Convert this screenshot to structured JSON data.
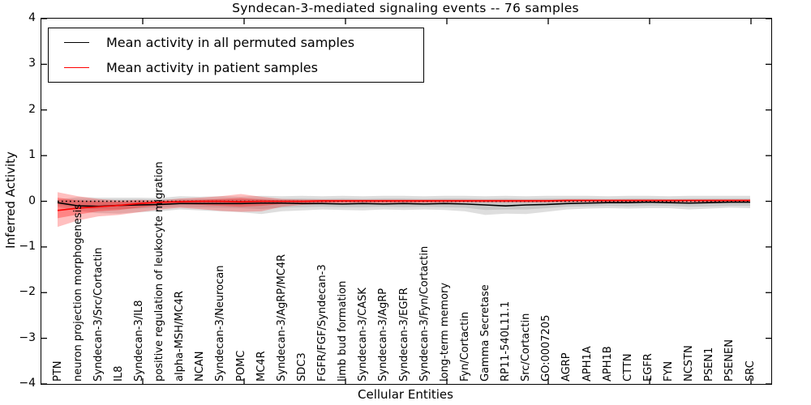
{
  "chart_data": {
    "type": "line",
    "title": "Syndecan-3-mediated signaling events -- 76 samples",
    "xlabel": "Cellular Entities",
    "ylabel": "Inferred Activity",
    "ylim": [
      -4,
      4
    ],
    "yticks": [
      "4",
      "3",
      "2",
      "1",
      "0",
      "−1",
      "−2",
      "−3",
      "−4"
    ],
    "grid": false,
    "legend_position": "upper left",
    "zero_line": {
      "y": 0,
      "style": "dotted",
      "color": "#000000"
    },
    "categories": [
      "PTN",
      "neuron projection morphogenesis",
      "Syndecan-3/Src/Cortactin",
      "IL8",
      "Syndecan-3/IL8",
      "positive regulation of leukocyte migration",
      "alpha-MSH/MC4R",
      "NCAN",
      "Syndecan-3/Neurocan",
      "POMC",
      "MC4R",
      "Syndecan-3/AgRP/MC4R",
      "SDC3",
      "FGFR/FGF/Syndecan-3",
      "limb bud formation",
      "Syndecan-3/CASK",
      "Syndecan-3/AgRP",
      "Syndecan-3/EGFR",
      "Syndecan-3/Fyn/Cortactin",
      "long-term memory",
      "Fyn/Cortactin",
      "Gamma Secretase",
      "RP11-540L11.1",
      "Src/Cortactin",
      "GO:0007205",
      "AGRP",
      "APH1A",
      "APH1B",
      "CTTN",
      "EGFR",
      "FYN",
      "NCSTN",
      "PSEN1",
      "PSENEN",
      "SRC"
    ],
    "series": [
      {
        "name": "Mean activity in all permuted samples",
        "color": "#000000",
        "values": [
          -0.03,
          -0.1,
          -0.11,
          -0.09,
          -0.08,
          -0.07,
          -0.05,
          -0.05,
          -0.05,
          -0.05,
          -0.04,
          -0.04,
          -0.05,
          -0.05,
          -0.06,
          -0.05,
          -0.06,
          -0.05,
          -0.06,
          -0.05,
          -0.06,
          -0.08,
          -0.1,
          -0.08,
          -0.07,
          -0.05,
          -0.04,
          -0.03,
          -0.03,
          -0.02,
          -0.03,
          -0.04,
          -0.03,
          -0.02,
          -0.02
        ]
      },
      {
        "name": "Mean activity in patient samples",
        "color": "#ff0000",
        "values": [
          -0.2,
          -0.15,
          -0.12,
          -0.09,
          -0.05,
          -0.02,
          -0.01,
          0.0,
          0.0,
          -0.01,
          0.0,
          0.0,
          0.0,
          0.01,
          0.01,
          0.01,
          0.01,
          0.01,
          0.01,
          0.01,
          0.01,
          0.01,
          0.01,
          0.01,
          0.01,
          0.02,
          0.02,
          0.02,
          0.02,
          0.02,
          0.02,
          0.02,
          0.02,
          0.02,
          0.02
        ]
      }
    ],
    "bands": [
      {
        "name": "permuted-band-outer",
        "color": "rgba(0,0,0,0.13)",
        "upper": [
          0.04,
          0.09,
          0.08,
          0.08,
          0.08,
          0.07,
          0.11,
          0.1,
          0.11,
          0.1,
          0.12,
          0.11,
          0.12,
          0.11,
          0.12,
          0.11,
          0.12,
          0.12,
          0.11,
          0.12,
          0.12,
          0.11,
          0.12,
          0.11,
          0.12,
          0.12,
          0.12,
          0.11,
          0.12,
          0.12,
          0.11,
          0.12,
          0.12,
          0.12,
          0.12
        ],
        "lower": [
          -0.12,
          -0.21,
          -0.26,
          -0.27,
          -0.24,
          -0.22,
          -0.18,
          -0.2,
          -0.22,
          -0.24,
          -0.28,
          -0.22,
          -0.2,
          -0.18,
          -0.19,
          -0.2,
          -0.18,
          -0.19,
          -0.18,
          -0.19,
          -0.22,
          -0.3,
          -0.27,
          -0.28,
          -0.23,
          -0.18,
          -0.16,
          -0.15,
          -0.16,
          -0.15,
          -0.15,
          -0.18,
          -0.16,
          -0.14,
          -0.15
        ]
      },
      {
        "name": "permuted-band-inner",
        "color": "rgba(0,0,0,0.10)",
        "upper": [
          0.02,
          0.04,
          0.04,
          0.04,
          0.04,
          0.04,
          0.05,
          0.05,
          0.05,
          0.05,
          0.06,
          0.05,
          0.06,
          0.05,
          0.06,
          0.05,
          0.06,
          0.06,
          0.05,
          0.06,
          0.06,
          0.05,
          0.06,
          0.05,
          0.06,
          0.06,
          0.06,
          0.05,
          0.06,
          0.06,
          0.05,
          0.06,
          0.06,
          0.06,
          0.06
        ],
        "lower": [
          -0.08,
          -0.14,
          -0.17,
          -0.17,
          -0.16,
          -0.14,
          -0.12,
          -0.13,
          -0.14,
          -0.15,
          -0.17,
          -0.14,
          -0.13,
          -0.12,
          -0.13,
          -0.13,
          -0.12,
          -0.13,
          -0.12,
          -0.13,
          -0.14,
          -0.19,
          -0.18,
          -0.18,
          -0.15,
          -0.12,
          -0.11,
          -0.1,
          -0.11,
          -0.1,
          -0.1,
          -0.12,
          -0.11,
          -0.1,
          -0.1
        ]
      },
      {
        "name": "patient-band-outer",
        "color": "rgba(255,0,0,0.25)",
        "upper": [
          0.2,
          0.11,
          0.05,
          0.02,
          0.03,
          0.02,
          0.06,
          0.08,
          0.11,
          0.16,
          0.1,
          0.05,
          0.04,
          0.04,
          0.04,
          0.04,
          0.04,
          0.04,
          0.04,
          0.04,
          0.04,
          0.04,
          0.04,
          0.04,
          0.04,
          0.04,
          0.04,
          0.04,
          0.04,
          0.04,
          0.04,
          0.04,
          0.04,
          0.04,
          0.04
        ],
        "lower": [
          -0.56,
          -0.42,
          -0.33,
          -0.3,
          -0.24,
          -0.18,
          -0.14,
          -0.17,
          -0.21,
          -0.23,
          -0.22,
          -0.12,
          -0.08,
          -0.06,
          -0.05,
          -0.05,
          -0.05,
          -0.04,
          -0.04,
          -0.04,
          -0.03,
          -0.03,
          -0.03,
          -0.03,
          -0.03,
          -0.02,
          -0.02,
          -0.02,
          -0.02,
          -0.02,
          -0.02,
          -0.02,
          -0.02,
          -0.02,
          -0.02
        ]
      },
      {
        "name": "patient-band-inner",
        "color": "rgba(255,0,0,0.30)",
        "upper": [
          0.08,
          0.02,
          0.0,
          -0.01,
          0.0,
          0.0,
          0.02,
          0.03,
          0.05,
          0.07,
          0.04,
          0.02,
          0.02,
          0.02,
          0.02,
          0.02,
          0.02,
          0.02,
          0.02,
          0.02,
          0.02,
          0.02,
          0.02,
          0.02,
          0.02,
          0.03,
          0.03,
          0.03,
          0.03,
          0.03,
          0.03,
          0.03,
          0.03,
          0.03,
          0.03
        ],
        "lower": [
          -0.37,
          -0.29,
          -0.22,
          -0.19,
          -0.14,
          -0.09,
          -0.06,
          -0.08,
          -0.1,
          -0.12,
          -0.1,
          -0.06,
          -0.04,
          -0.03,
          -0.02,
          -0.02,
          -0.02,
          -0.02,
          -0.02,
          -0.01,
          -0.01,
          -0.01,
          -0.01,
          -0.01,
          -0.01,
          -0.01,
          -0.01,
          -0.01,
          -0.01,
          -0.01,
          -0.01,
          -0.01,
          -0.01,
          -0.01,
          -0.01
        ]
      }
    ],
    "colors": {
      "background": "#ffffff",
      "axis": "#000000",
      "permuted_line": "#000000",
      "patient_line": "#ff0000"
    }
  }
}
